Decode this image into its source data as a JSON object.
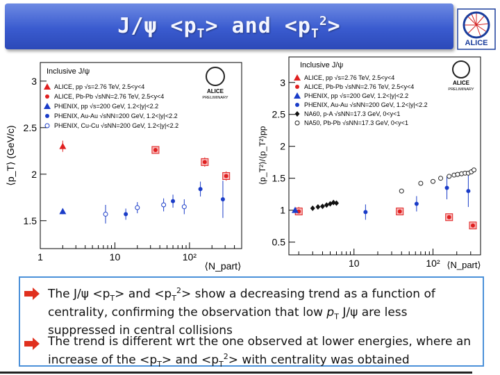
{
  "title": {
    "part1": "J/ψ <p",
    "sub1": "T",
    "part2": "> and <p",
    "sub2": "T",
    "sup2": "2",
    "part3": ">"
  },
  "logo": {
    "label": "ALICE",
    "colors": {
      "ring": "#1a3d9c",
      "rays": "#d32020"
    }
  },
  "chart_data": [
    {
      "type": "scatter",
      "title": "Inclusive J/ψ",
      "badge": [
        "ALICE",
        "PRELIMINARY"
      ],
      "xlabel": "⟨N_part⟩",
      "ylabel": "⟨p_T⟩ (GeV/c)",
      "xscale": "log",
      "xlim": [
        1,
        500
      ],
      "ylim": [
        1.2,
        3.2
      ],
      "xticks": [
        {
          "v": 1,
          "label": "1"
        },
        {
          "v": 10,
          "label": "10"
        },
        {
          "v": 100,
          "label": "10²"
        }
      ],
      "yticks": [
        {
          "v": 1.5,
          "label": "1.5"
        },
        {
          "v": 2,
          "label": "2"
        },
        {
          "v": 2.5,
          "label": "2.5"
        },
        {
          "v": 3,
          "label": "3"
        }
      ],
      "series": [
        {
          "name": "ALICE, pp √s=2.76 TeV, 2.5<y<4",
          "marker": "triangle",
          "color": "#e02020",
          "points": [
            {
              "x": 2,
              "y": 2.3,
              "err": 0.06
            }
          ]
        },
        {
          "name": "ALICE, Pb-Pb √sNN=2.76 TeV, 2.5<y<4",
          "marker": "circle",
          "color": "#e02020",
          "box": true,
          "points": [
            {
              "x": 35,
              "y": 2.26,
              "err": 0.04
            },
            {
              "x": 160,
              "y": 2.13,
              "err": 0.05
            },
            {
              "x": 310,
              "y": 1.98,
              "err": 0.05
            }
          ]
        },
        {
          "name": "PHENIX, pp √s=200 GeV, 1.2<|y|<2.2",
          "marker": "triangle",
          "color": "#1a3cc8",
          "points": [
            {
              "x": 2,
              "y": 1.6,
              "err": 0.03
            }
          ]
        },
        {
          "name": "PHENIX, Au-Au √sNN=200 GeV, 1.2<|y|<2.2",
          "marker": "circle",
          "color": "#1a3cc8",
          "points": [
            {
              "x": 14,
              "y": 1.57,
              "err": 0.06
            },
            {
              "x": 60,
              "y": 1.71,
              "err": 0.07
            },
            {
              "x": 140,
              "y": 1.84,
              "err": 0.08
            },
            {
              "x": 280,
              "y": 1.73,
              "err": 0.2
            }
          ]
        },
        {
          "name": "PHENIX, Cu-Cu √sNN=200 GeV, 1.2<|y|<2.2",
          "marker": "open-circle",
          "color": "#1a3cc8",
          "points": [
            {
              "x": 7.5,
              "y": 1.57,
              "err": 0.1
            },
            {
              "x": 20,
              "y": 1.64,
              "err": 0.06
            },
            {
              "x": 45,
              "y": 1.67,
              "err": 0.07
            },
            {
              "x": 85,
              "y": 1.65,
              "err": 0.08
            }
          ]
        }
      ]
    },
    {
      "type": "scatter",
      "title": "Inclusive J/ψ",
      "badge": [
        "ALICE",
        "PRELIMINARY"
      ],
      "xlabel": "⟨N_part⟩",
      "ylabel": "⟨p_T²⟩/⟨p_T²⟩pp",
      "xscale": "log",
      "xlim": [
        1.5,
        400
      ],
      "ylim": [
        0.3,
        3.4
      ],
      "xticks": [
        {
          "v": 10,
          "label": "10"
        },
        {
          "v": 100,
          "label": "10²"
        }
      ],
      "yticks": [
        {
          "v": 0.5,
          "label": "0.5"
        },
        {
          "v": 1,
          "label": "1"
        },
        {
          "v": 1.5,
          "label": "1.5"
        },
        {
          "v": 2,
          "label": "2"
        },
        {
          "v": 2.5,
          "label": "2.5"
        },
        {
          "v": 3,
          "label": "3"
        }
      ],
      "series": [
        {
          "name": "ALICE, pp √s=2.76 TeV, 2.5<y<4",
          "marker": "triangle",
          "color": "#e02020",
          "points": [
            {
              "x": 2,
              "y": 1.0,
              "err": 0.04
            }
          ]
        },
        {
          "name": "ALICE, Pb-Pb √sNN=2.76 TeV, 2.5<y<4",
          "marker": "circle",
          "color": "#e02020",
          "box": true,
          "points": [
            {
              "x": 2,
              "y": 0.98,
              "err": 0.04
            },
            {
              "x": 38,
              "y": 0.98,
              "err": 0.04
            },
            {
              "x": 160,
              "y": 0.89,
              "err": 0.04
            },
            {
              "x": 320,
              "y": 0.76,
              "err": 0.03
            }
          ]
        },
        {
          "name": "PHENIX, pp √s=200 GeV, 1.2<|y|<2.2",
          "marker": "triangle",
          "color": "#1a3cc8",
          "points": [
            {
              "x": 1.8,
              "y": 1.0,
              "err": 0.04
            }
          ]
        },
        {
          "name": "PHENIX, Au-Au √sNN=200 GeV, 1.2<|y|<2.2",
          "marker": "circle",
          "color": "#1a3cc8",
          "points": [
            {
              "x": 14,
              "y": 0.97,
              "err": 0.12
            },
            {
              "x": 62,
              "y": 1.1,
              "err": 0.12
            },
            {
              "x": 150,
              "y": 1.35,
              "err": 0.18
            },
            {
              "x": 280,
              "y": 1.3,
              "err": 0.25
            }
          ]
        },
        {
          "name": "NA60, p-A √sNN=17.3 GeV, 0<y<1",
          "marker": "diamond",
          "color": "#111111",
          "points": [
            {
              "x": 3,
              "y": 1.03,
              "err": 0.03
            },
            {
              "x": 3.5,
              "y": 1.05,
              "err": 0.03
            },
            {
              "x": 4,
              "y": 1.06,
              "err": 0.03
            },
            {
              "x": 4.5,
              "y": 1.08,
              "err": 0.03
            },
            {
              "x": 5,
              "y": 1.1,
              "err": 0.03
            },
            {
              "x": 5.5,
              "y": 1.12,
              "err": 0.04
            },
            {
              "x": 6,
              "y": 1.11,
              "err": 0.03
            }
          ]
        },
        {
          "name": "NA50, Pb-Pb √sNN=17.3 GeV, 0<y<1",
          "marker": "open-circle",
          "color": "#222222",
          "points": [
            {
              "x": 40,
              "y": 1.3
            },
            {
              "x": 70,
              "y": 1.42
            },
            {
              "x": 100,
              "y": 1.45
            },
            {
              "x": 125,
              "y": 1.5
            },
            {
              "x": 160,
              "y": 1.53
            },
            {
              "x": 185,
              "y": 1.55
            },
            {
              "x": 205,
              "y": 1.56
            },
            {
              "x": 230,
              "y": 1.57
            },
            {
              "x": 255,
              "y": 1.58
            },
            {
              "x": 280,
              "y": 1.58
            },
            {
              "x": 305,
              "y": 1.6
            },
            {
              "x": 330,
              "y": 1.63
            }
          ]
        }
      ]
    }
  ],
  "text_box": {
    "bullet1": {
      "a": "The J/ψ <p",
      "b": "T",
      "c": "> and <p",
      "d": "T",
      "e": "2",
      "f": "> show a decreasing trend as a function of centrality, confirming the observation that low ",
      "g": "p",
      "h": "T",
      "i": " J/ψ are less suppressed in central collisions"
    },
    "bullet2": {
      "a": "The trend is different wrt the one observed at lower energies, where an increase of the <p",
      "b": "T",
      "c": "> and <p",
      "d": "T",
      "e": "2",
      "f": "> with centrality was obtained"
    }
  }
}
